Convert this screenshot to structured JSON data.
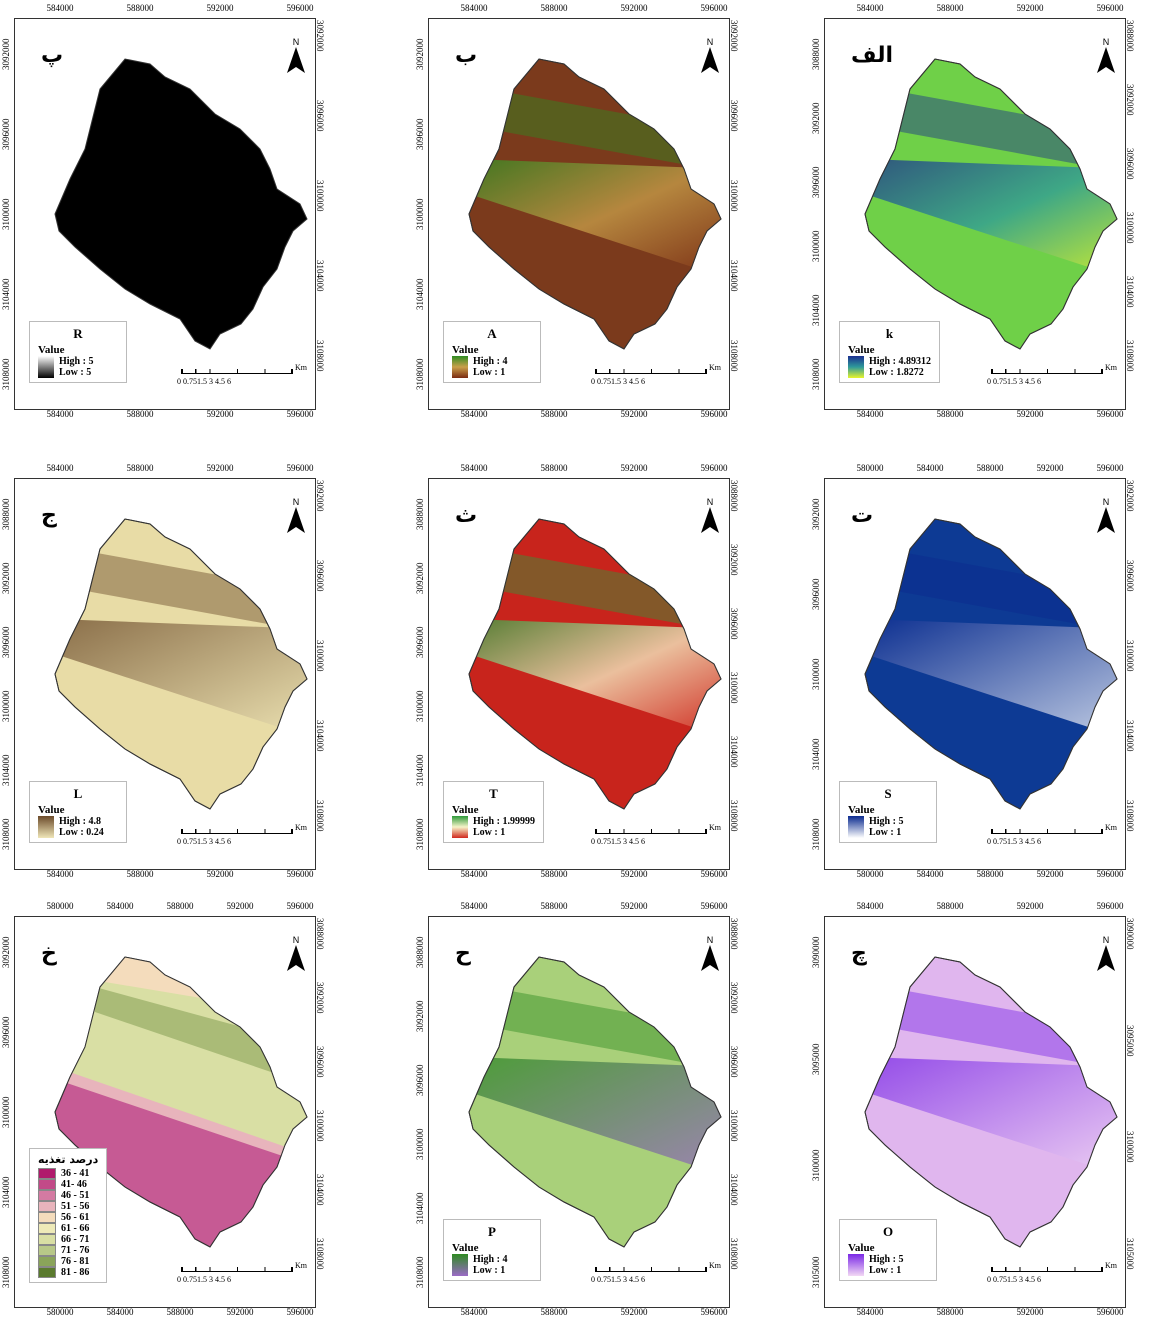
{
  "panels": [
    {
      "id": "p",
      "label": "پ",
      "legend_title": "R",
      "high": "High : 5",
      "low": "Low : 5",
      "ramp": [
        "#000000",
        "#ffffff"
      ],
      "fill": "#000000",
      "top": [
        "584000",
        "588000",
        "592000",
        "596000"
      ],
      "bottom": [
        "584000",
        "588000",
        "592000",
        "596000"
      ],
      "left": [
        "3108000",
        "3104000",
        "3100000",
        "3096000",
        "3092000"
      ],
      "right": [
        "3108000",
        "3104000",
        "3100000",
        "3096000",
        "3092000"
      ]
    },
    {
      "id": "b",
      "label": "ب",
      "legend_title": "A",
      "high": "High : 4",
      "low": "Low : 1",
      "ramp": [
        "#2e8b22",
        "#c9a04a",
        "#7a2a12"
      ],
      "fill": "#7b3a1c",
      "top": [
        "584000",
        "588000",
        "592000",
        "596000"
      ],
      "bottom": [
        "584000",
        "588000",
        "592000",
        "596000"
      ],
      "left": [
        "3108000",
        "3104000",
        "3100000",
        "3096000",
        "3092000"
      ],
      "right": [
        "3108000",
        "3104000",
        "3100000",
        "3096000",
        "3092000"
      ]
    },
    {
      "id": "alef",
      "label": "الف",
      "legend_title": "k",
      "high": "High : 4.89312",
      "low": "Low : 1.8272",
      "ramp": [
        "#1a2e8f",
        "#2e9a9a",
        "#e8f52a"
      ],
      "fill": "#6fd048",
      "top": [
        "584000",
        "588000",
        "592000",
        "596000"
      ],
      "bottom": [
        "584000",
        "588000",
        "592000",
        "596000"
      ],
      "left": [
        "3108000",
        "3104000",
        "3100000",
        "3096000",
        "3092000",
        "3088000"
      ],
      "right": [
        "3108000",
        "3104000",
        "3100000",
        "3096000",
        "3092000",
        "3088000"
      ]
    },
    {
      "id": "j",
      "label": "ج",
      "legend_title": "L",
      "high": "High : 4.8",
      "low": "Low : 0.24",
      "ramp": [
        "#6b4a2a",
        "#efe6b8"
      ],
      "fill": "#e8dca6",
      "top": [
        "584000",
        "588000",
        "592000",
        "596000"
      ],
      "bottom": [
        "584000",
        "588000",
        "592000",
        "596000"
      ],
      "left": [
        "3108000",
        "3104000",
        "3100000",
        "3096000",
        "3092000",
        "3088000"
      ],
      "right": [
        "3108000",
        "3104000",
        "3100000",
        "3096000",
        "3092000"
      ]
    },
    {
      "id": "th",
      "label": "ث",
      "legend_title": "T",
      "high": "High : 1.99999",
      "low": "Low : 1",
      "ramp": [
        "#2e9a3a",
        "#f6f3c8",
        "#d0281e"
      ],
      "fill": "#c8241c",
      "top": [
        "584000",
        "588000",
        "592000",
        "596000"
      ],
      "bottom": [
        "584000",
        "588000",
        "592000",
        "596000"
      ],
      "left": [
        "3108000",
        "3104000",
        "3100000",
        "3096000",
        "3092000",
        "3088000"
      ],
      "right": [
        "3108000",
        "3104000",
        "3100000",
        "3096000",
        "3092000",
        "3088000"
      ]
    },
    {
      "id": "t",
      "label": "ت",
      "legend_title": "S",
      "high": "High : 5",
      "low": "Low : 1",
      "ramp": [
        "#0a2a8f",
        "#ffffff"
      ],
      "fill": "#0d3a94",
      "top": [
        "580000",
        "584000",
        "588000",
        "592000",
        "596000"
      ],
      "bottom": [
        "580000",
        "584000",
        "588000",
        "592000",
        "596000"
      ],
      "left": [
        "3108000",
        "3104000",
        "3100000",
        "3096000",
        "3092000"
      ],
      "right": [
        "3108000",
        "3104000",
        "3100000",
        "3096000",
        "3092000"
      ]
    },
    {
      "id": "kh",
      "label": "خ",
      "legend_title": "",
      "high": "",
      "low": "",
      "ramp": [],
      "fill": "#c65a94",
      "top": [
        "580000",
        "584000",
        "588000",
        "592000",
        "596000"
      ],
      "bottom": [
        "580000",
        "584000",
        "588000",
        "592000",
        "596000"
      ],
      "left": [
        "3108000",
        "3104000",
        "3100000",
        "3096000",
        "3092000"
      ],
      "right": [
        "3108000",
        "3104000",
        "3100000",
        "3096000",
        "3092000",
        "3088000"
      ]
    },
    {
      "id": "h",
      "label": "ح",
      "legend_title": "P",
      "high": "High : 4",
      "low": "Low : 1",
      "ramp": [
        "#2e8b22",
        "#9a6ac6"
      ],
      "fill": "#a9d07a",
      "top": [
        "584000",
        "588000",
        "592000",
        "596000"
      ],
      "bottom": [
        "584000",
        "588000",
        "592000",
        "596000"
      ],
      "left": [
        "3108000",
        "3104000",
        "3100000",
        "3096000",
        "3092000",
        "3088000"
      ],
      "right": [
        "3108000",
        "3104000",
        "3100000",
        "3096000",
        "3092000",
        "3088000"
      ]
    },
    {
      "id": "che",
      "label": "چ",
      "legend_title": "O",
      "high": "High : 5",
      "low": "Low : 1",
      "ramp": [
        "#7a28e6",
        "#f2d8f4"
      ],
      "fill": "#e0b6ee",
      "top": [
        "584000",
        "588000",
        "592000",
        "596000"
      ],
      "bottom": [
        "584000",
        "588000",
        "592000",
        "596000"
      ],
      "left": [
        "3105000",
        "3100000",
        "3095000",
        "3090000"
      ],
      "right": [
        "3105000",
        "3100000",
        "3095000",
        "3090000"
      ]
    }
  ],
  "common": {
    "value_label": "Value",
    "north": "N",
    "scale_nums": "0 0.751.5     3     4.5     6",
    "scale_unit": "Km"
  },
  "pct_legend": {
    "title": "درصد تغذیه",
    "classes": [
      {
        "label": "36 - 41",
        "color": "#b01a6c"
      },
      {
        "label": "41- 46",
        "color": "#c24a88"
      },
      {
        "label": "46 - 51",
        "color": "#d47aa2"
      },
      {
        "label": "51 - 56",
        "color": "#e8b4bc"
      },
      {
        "label": "56 - 61",
        "color": "#f4dcbc"
      },
      {
        "label": "61 - 66",
        "color": "#eeeab8"
      },
      {
        "label": "66 - 71",
        "color": "#d9dfa4"
      },
      {
        "label": "71 - 76",
        "color": "#b8c888"
      },
      {
        "label": "76 - 81",
        "color": "#8aa45a"
      },
      {
        "label": "81 - 86",
        "color": "#5a7a2e"
      }
    ]
  }
}
